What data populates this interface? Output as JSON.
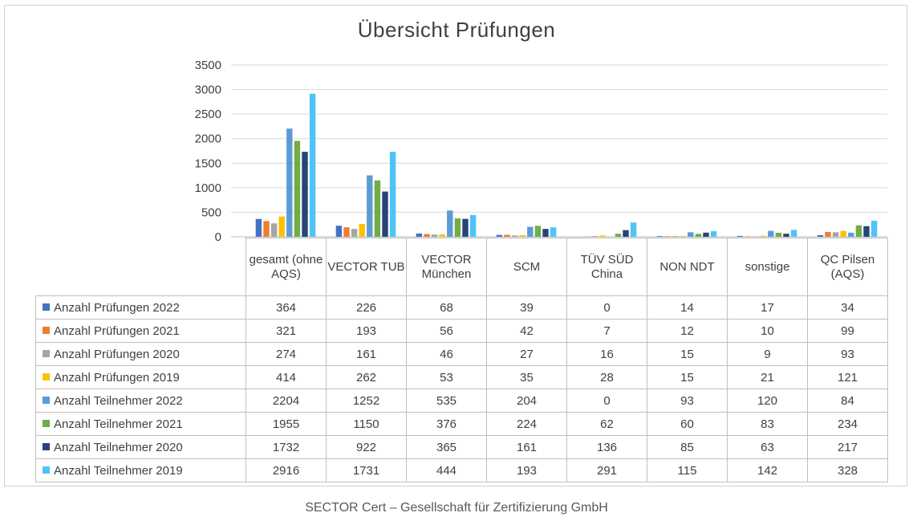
{
  "footer": "SECTOR Cert – Gesellschaft für Zertifizierung GmbH",
  "chart_data": {
    "type": "bar",
    "title": "Übersicht Prüfungen",
    "ylim": [
      0,
      3500
    ],
    "yticks": [
      "3500",
      "3000",
      "2500",
      "2000",
      "1500",
      "1000",
      "500",
      "0"
    ],
    "grid": true,
    "legend": "table",
    "categories": [
      "gesamt (ohne AQS)",
      "VECTOR TUB",
      "VECTOR München",
      "SCM",
      "TÜV SÜD China",
      "NON NDT",
      "sonstige",
      "QC Pilsen (AQS)"
    ],
    "series": [
      {
        "name": "Anzahl Prüfungen 2022",
        "color": "#4472c4",
        "values": [
          364,
          226,
          68,
          39,
          0,
          14,
          17,
          34
        ]
      },
      {
        "name": "Anzahl Prüfungen 2021",
        "color": "#ed7d31",
        "values": [
          321,
          193,
          56,
          42,
          7,
          12,
          10,
          99
        ]
      },
      {
        "name": "Anzahl Prüfungen 2020",
        "color": "#a5a5a5",
        "values": [
          274,
          161,
          46,
          27,
          16,
          15,
          9,
          93
        ]
      },
      {
        "name": "Anzahl Prüfungen 2019",
        "color": "#ffc000",
        "values": [
          414,
          262,
          53,
          35,
          28,
          15,
          21,
          121
        ]
      },
      {
        "name": "Anzahl Teilnehmer 2022",
        "color": "#5b9bd5",
        "values": [
          2204,
          1252,
          535,
          204,
          0,
          93,
          120,
          84
        ]
      },
      {
        "name": "Anzahl Teilnehmer 2021",
        "color": "#70ad47",
        "values": [
          1955,
          1150,
          376,
          224,
          62,
          60,
          83,
          234
        ]
      },
      {
        "name": "Anzahl Teilnehmer 2020",
        "color": "#264478",
        "values": [
          1732,
          922,
          365,
          161,
          136,
          85,
          63,
          217
        ]
      },
      {
        "name": "Anzahl Teilnehmer 2019",
        "color": "#4fc3f7",
        "values": [
          2916,
          1731,
          444,
          193,
          291,
          115,
          142,
          328
        ]
      }
    ]
  }
}
